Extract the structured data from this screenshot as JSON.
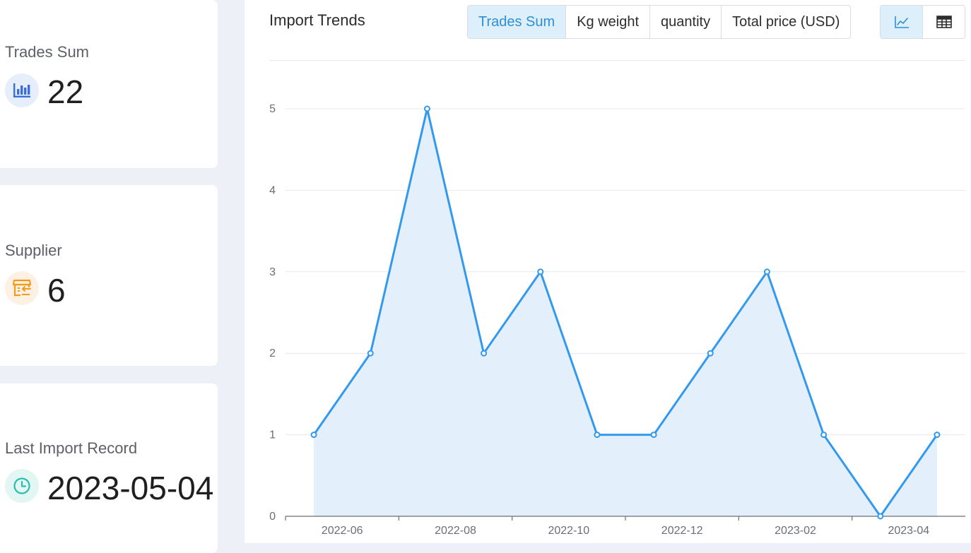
{
  "stats": {
    "trades_sum": {
      "label": "Trades Sum",
      "value": "22",
      "icon": "bar-chart-icon",
      "icon_color": "#3b6fd8"
    },
    "supplier": {
      "label": "Supplier",
      "value": "6",
      "icon": "storefront-icon",
      "icon_color": "#f39a1d"
    },
    "last_import": {
      "label": "Last Import Record",
      "value": "2023-05-04",
      "icon": "clock-icon",
      "icon_color": "#2bbcb0"
    }
  },
  "panel": {
    "title": "Import Trends",
    "metric_tabs": [
      "Trades Sum",
      "Kg weight",
      "quantity",
      "Total price (USD)"
    ],
    "active_tab": "Trades Sum",
    "view_toggle": {
      "active": "line-chart",
      "options": [
        "line-chart-icon",
        "table-icon"
      ]
    }
  },
  "colors": {
    "accent": "#2f8fd6",
    "line": "#3399ee",
    "area_fill": "#e3f0fc",
    "active_tab_bg": "#ddeffb"
  },
  "chart_data": {
    "type": "area",
    "title": "",
    "xlabel": "",
    "ylabel": "",
    "x": [
      "2022-06",
      "2022-07",
      "2022-08",
      "2022-09",
      "2022-10",
      "2022-11",
      "2022-12",
      "2023-01",
      "2023-02",
      "2023-03",
      "2023-04",
      "2023-05"
    ],
    "values": [
      1,
      2,
      5,
      2,
      3,
      1,
      1,
      2,
      3,
      1,
      0,
      1
    ],
    "x_ticks": [
      "2022-06",
      "2022-08",
      "2022-10",
      "2022-12",
      "2023-02",
      "2023-04"
    ],
    "y_ticks": [
      0,
      1,
      2,
      3,
      4,
      5
    ],
    "ylim": [
      0,
      5
    ],
    "grid": true,
    "legend": "none"
  }
}
